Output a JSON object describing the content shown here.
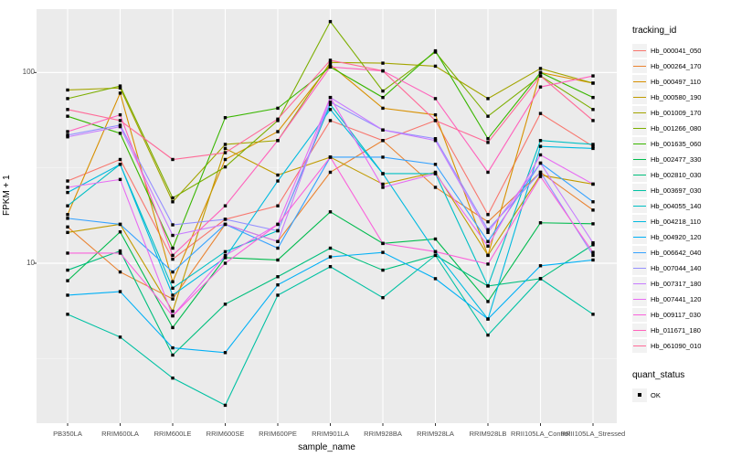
{
  "figure": {
    "background": "#ffffff",
    "panel_background": "#ebebeb",
    "grid_major_color": "#ffffff",
    "grid_minor_color": "#f5f5f5",
    "tick_color": "#333333",
    "axis_text_color": "#4d4d4d",
    "marker": "black-square",
    "marker_color": "#000000"
  },
  "y_axis": {
    "title": "FPKM + 1",
    "tick_labels": [
      "100",
      "10"
    ],
    "tick_values": [
      100,
      10
    ]
  },
  "x_axis": {
    "title": "sample_name"
  },
  "legend": {
    "tracking_id_title": "tracking_id",
    "quant_status_title": "quant_status",
    "quant_status_items": [
      {
        "label": "OK"
      }
    ]
  },
  "chart_data": {
    "type": "line",
    "scale_y": "log10",
    "ylim": [
      1.45,
      215
    ],
    "y_major": [
      10,
      100
    ],
    "y_minor": [
      3.162,
      31.623
    ],
    "grid": "on",
    "legend_position": "right",
    "xlabel": "sample_name",
    "ylabel": "FPKM + 1",
    "x": [
      "PB350LA",
      "RRIM600LA",
      "RRIM600LE",
      "RRIM600SE",
      "RRIM600PE",
      "RRIM901LA",
      "RRIM928BA",
      "RRIM928LA",
      "RRIM928LB",
      "RRII105LA_Control",
      "RRII105LA_Stressed"
    ],
    "series": [
      {
        "name": "Hb_000041_050",
        "color": "#F8766D",
        "values": [
          27,
          35,
          10.5,
          17,
          20,
          56,
          44,
          56,
          18,
          61,
          41
        ]
      },
      {
        "name": "Hb_000264_170",
        "color": "#EA8331",
        "values": [
          15.5,
          9,
          6.5,
          16,
          13,
          30,
          44,
          25,
          16.5,
          30,
          19
        ]
      },
      {
        "name": "Hb_000497_110",
        "color": "#D89000",
        "values": [
          18,
          78,
          8,
          35,
          49,
          110,
          65,
          60,
          11,
          100,
          88
        ]
      },
      {
        "name": "Hb_000580_190",
        "color": "#C09B00",
        "values": [
          14.5,
          16,
          5.6,
          40,
          29,
          36,
          26,
          30,
          11,
          29,
          26
        ]
      },
      {
        "name": "Hb_001009_170",
        "color": "#A3A500",
        "values": [
          81,
          83,
          21,
          42,
          44,
          113,
          112,
          108,
          73,
          105,
          88
        ]
      },
      {
        "name": "Hb_001266_080",
        "color": "#7CAE00",
        "values": [
          73,
          85,
          22,
          32,
          56,
          185,
          80,
          128,
          59,
          96,
          64
        ]
      },
      {
        "name": "Hb_001635_060",
        "color": "#39B600",
        "values": [
          59,
          48,
          12,
          58,
          65,
          107,
          74,
          130,
          45,
          100,
          74
        ]
      },
      {
        "name": "Hb_002477_330",
        "color": "#00BB4E",
        "values": [
          8.1,
          14.6,
          4.6,
          10.7,
          10.4,
          18.6,
          12.7,
          13.4,
          6.3,
          16.3,
          16.1
        ]
      },
      {
        "name": "Hb_002810_030",
        "color": "#00BF7D",
        "values": [
          9.2,
          11.6,
          3.3,
          6.1,
          8.5,
          12,
          9.2,
          11,
          7.6,
          8.3,
          12.5
        ]
      },
      {
        "name": "Hb_003697_030",
        "color": "#00C1A3",
        "values": [
          5.4,
          4.1,
          2.5,
          1.8,
          6.8,
          9.6,
          6.6,
          11,
          4.2,
          8.3,
          5.4
        ]
      },
      {
        "name": "Hb_004055_140",
        "color": "#00BFC4",
        "values": [
          20,
          33,
          7.4,
          11.5,
          14.8,
          68,
          29.5,
          29.5,
          7.6,
          44,
          42
        ]
      },
      {
        "name": "Hb_004218_110",
        "color": "#00BAE0",
        "values": [
          23.5,
          33,
          6.8,
          10.7,
          27,
          64,
          29.5,
          11.5,
          5.1,
          41,
          40
        ]
      },
      {
        "name": "Hb_004920_120",
        "color": "#00B0F6",
        "values": [
          6.8,
          7.1,
          3.6,
          3.4,
          7.7,
          10.8,
          11.4,
          8.3,
          5.1,
          9.7,
          10.4
        ]
      },
      {
        "name": "Hb_006642_040",
        "color": "#35A2FF",
        "values": [
          17.2,
          16,
          9,
          16,
          12,
          36,
          36,
          33,
          13,
          33.5,
          21
        ]
      },
      {
        "name": "Hb_007044_140",
        "color": "#9590FF",
        "values": [
          47,
          53,
          15.9,
          17,
          14.8,
          70,
          50,
          45,
          15,
          30,
          11
        ]
      },
      {
        "name": "Hb_007317_180",
        "color": "#C77CFF",
        "values": [
          46,
          52,
          14,
          16,
          13,
          74,
          50,
          44,
          14.5,
          33.5,
          12.8
        ]
      },
      {
        "name": "Hb_007441_120",
        "color": "#E76BF3",
        "values": [
          25,
          27.5,
          5.3,
          11,
          16,
          74,
          25,
          29.5,
          12.3,
          37,
          26
        ]
      },
      {
        "name": "Hb_009117_030",
        "color": "#FA62DB",
        "values": [
          11.3,
          11.3,
          5.3,
          10,
          16,
          36,
          12.7,
          11.5,
          9.9,
          28.5,
          11.4
        ]
      },
      {
        "name": "Hb_011671_180",
        "color": "#FF62BC",
        "values": [
          49,
          60,
          11,
          20,
          44,
          107,
          102,
          73,
          30,
          84,
          96
        ]
      },
      {
        "name": "Hb_061090_010",
        "color": "#FF6A98",
        "values": [
          64,
          56,
          35,
          38,
          57,
          116,
          102,
          56,
          43,
          96,
          56
        ]
      }
    ]
  }
}
